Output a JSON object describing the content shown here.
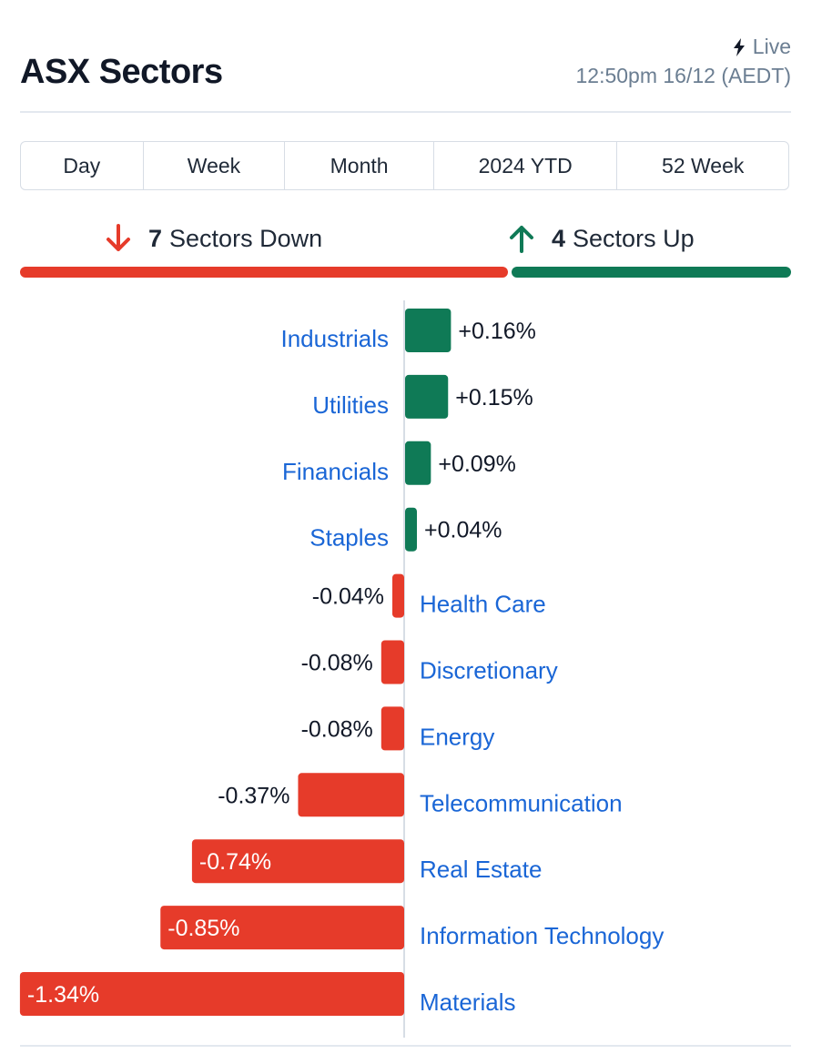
{
  "header": {
    "title": "ASX Sectors",
    "live_label": "Live",
    "live_icon": "lightning-bolt-icon",
    "timestamp": "12:50pm 16/12 (AEDT)"
  },
  "tabs": [
    {
      "label": "Day",
      "active": true
    },
    {
      "label": "Week",
      "active": false
    },
    {
      "label": "Month",
      "active": false
    },
    {
      "label": "2024 YTD",
      "active": false
    },
    {
      "label": "52 Week",
      "active": false
    }
  ],
  "summary": {
    "down_count": "7",
    "down_label": "Sectors Down",
    "up_count": "4",
    "up_label": "Sectors Up"
  },
  "colors": {
    "positive": "#0f7a56",
    "negative": "#e63b2a",
    "link": "#1a66d6",
    "text": "#111827"
  },
  "chart_data": {
    "type": "bar",
    "orientation": "horizontal",
    "categories": [
      "Industrials",
      "Utilities",
      "Financials",
      "Staples",
      "Health Care",
      "Discretionary",
      "Energy",
      "Telecommunication",
      "Real Estate",
      "Information Technology",
      "Materials"
    ],
    "values": [
      0.16,
      0.15,
      0.09,
      0.04,
      -0.04,
      -0.08,
      -0.08,
      -0.37,
      -0.74,
      -0.85,
      -1.34
    ],
    "labels": [
      "+0.16%",
      "+0.15%",
      "+0.09%",
      "+0.04%",
      "-0.04%",
      "-0.08%",
      "-0.08%",
      "-0.37%",
      "-0.74%",
      "-0.85%",
      "-1.34%"
    ],
    "unit": "%",
    "title": "",
    "xlabel": "",
    "ylabel": ""
  }
}
